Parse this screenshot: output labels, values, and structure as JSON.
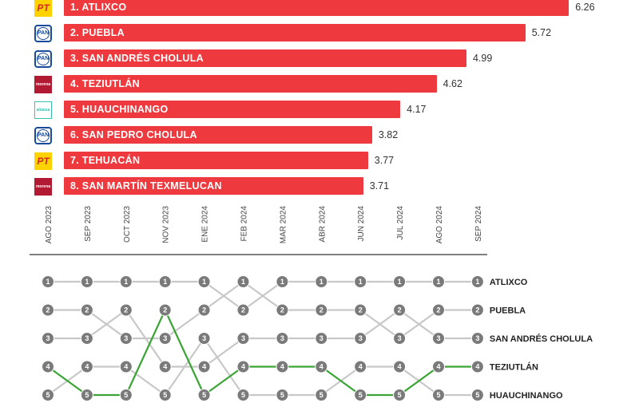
{
  "chart_data": [
    {
      "type": "bar",
      "categories": [
        "1. ATLIXCO",
        "2. PUEBLA",
        "3. SAN ANDRÉS CHOLULA",
        "4. TEZIUTLÁN",
        "5. HUAUCHINANGO",
        "6. SAN PEDRO CHOLULA",
        "7. TEHUACÁN",
        "8. SAN MARTÍN TEXMELUCAN"
      ],
      "values": [
        6.26,
        5.72,
        4.99,
        4.62,
        4.17,
        3.82,
        3.77,
        3.71
      ],
      "value_labels": [
        "6.26",
        "5.72",
        "4.99",
        "4.62",
        "4.17",
        "3.82",
        "3.77",
        "3.71"
      ],
      "parties": [
        {
          "icon": "pt-logo",
          "text": "PT"
        },
        {
          "icon": "pan-logo",
          "text": "PAN"
        },
        {
          "icon": "pan-logo",
          "text": "PAN"
        },
        {
          "icon": "morena-logo",
          "text": "morena"
        },
        {
          "icon": "alianza-logo",
          "text": "alianza"
        },
        {
          "icon": "pan-logo",
          "text": "PAN"
        },
        {
          "icon": "pt-logo",
          "text": "PT"
        },
        {
          "icon": "morena-logo",
          "text": "morena"
        }
      ],
      "bar_color": "#ee3a3f"
    },
    {
      "type": "line",
      "x": [
        "AGO 2023",
        "SEP 2023",
        "OCT 2023",
        "NOV 2023",
        "ENE 2024",
        "FEB 2024",
        "MAR 2024",
        "ABR 2024",
        "JUN 2024",
        "JUL 2024",
        "AGO 2024",
        "SEP 2024"
      ],
      "y_axis": "rank",
      "ylim": [
        1,
        5
      ],
      "node_labels": [
        "1",
        "2",
        "3",
        "4",
        "5"
      ],
      "series": [
        {
          "name": "ATLIXCO",
          "values": [
            1,
            1,
            1,
            1,
            1,
            2,
            1,
            1,
            1,
            1,
            1,
            1
          ]
        },
        {
          "name": "PUEBLA",
          "values": [
            2,
            2,
            3,
            3,
            2,
            1,
            2,
            2,
            2,
            3,
            2,
            2
          ]
        },
        {
          "name": "SAN ANDRÉS CHOLULA",
          "values": [
            3,
            3,
            2,
            4,
            4,
            3,
            3,
            3,
            3,
            2,
            3,
            3
          ]
        },
        {
          "name": "TEZIUTLÁN",
          "values": [
            4,
            5,
            5,
            2,
            5,
            4,
            4,
            4,
            5,
            5,
            4,
            4
          ],
          "highlight": true
        },
        {
          "name": "HUAUCHINANGO",
          "values": [
            5,
            4,
            4,
            5,
            3,
            5,
            5,
            5,
            4,
            4,
            5,
            5
          ]
        }
      ],
      "colors": {
        "node": "#7a7a7a",
        "line": "#c8c8c8",
        "highlight": "#3aa535"
      }
    }
  ]
}
